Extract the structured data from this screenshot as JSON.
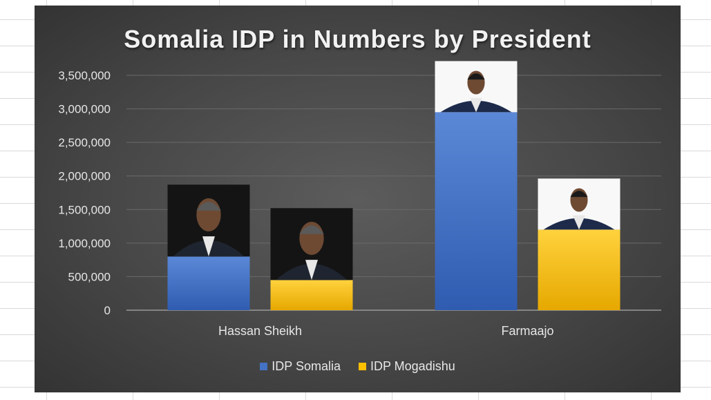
{
  "chart_data": {
    "type": "bar",
    "title": "Somalia IDP in Numbers by President",
    "categories": [
      "Hassan Sheikh",
      "Farmaajo"
    ],
    "series": [
      {
        "name": "IDP Somalia",
        "values": [
          800000,
          2950000
        ],
        "color": "#4472c4"
      },
      {
        "name": "IDP Mogadishu",
        "values": [
          450000,
          1200000
        ],
        "color": "#ffc000"
      }
    ],
    "ylim": [
      0,
      3500000
    ],
    "yticks": [
      0,
      500000,
      1000000,
      1500000,
      2000000,
      2500000,
      3000000,
      3500000
    ],
    "ytick_labels": [
      "0",
      "500,000",
      "1,000,000",
      "1,500,000",
      "2,000,000",
      "2,500,000",
      "3,000,000",
      "3,500,000"
    ],
    "grid": true,
    "legend_position": "bottom",
    "bar_images": [
      "president-portrait",
      "president-portrait",
      "president-portrait",
      "president-portrait"
    ]
  }
}
